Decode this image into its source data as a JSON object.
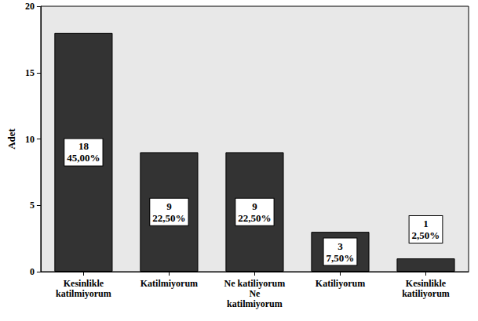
{
  "chart_data": {
    "type": "bar",
    "y_label": "Adet",
    "categories": [
      "Kesinlikle\nkatilmiyorum",
      "Katilmiyorum",
      "Ne katiliyorum\nNe\nkatilmiyorum",
      "Katiliyorum",
      "Kesinlikle\nkatiliyorum"
    ],
    "values": [
      18,
      9,
      9,
      3,
      1
    ],
    "value_labels": [
      "18\n45,00%",
      "9\n22,50%",
      "9\n22,50%",
      "3\n7,50%",
      "1\n2,50%"
    ],
    "color": "#333333",
    "ylim": [
      0,
      20
    ],
    "yticks": [
      0,
      5,
      10,
      15,
      20
    ],
    "grid": false,
    "data_labels": true
  }
}
